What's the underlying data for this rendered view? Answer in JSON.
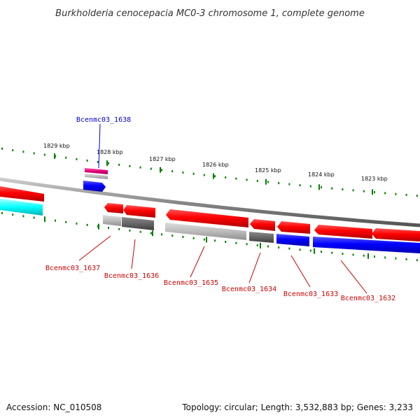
{
  "title": "Burkholderia cenocepacia MC0-3 chromosome 1, complete genome",
  "footer": {
    "accession": "Accession: NC_010508",
    "summary": "Topology: circular; Length: 3,532,883 bp; Genes: 3,233"
  },
  "colors": {
    "forward": "#ff0000",
    "reverse": "#0000ff",
    "rna": "#e2007a",
    "pseudo_light": "#bbbbbb",
    "pseudo_dark": "#666666",
    "cyan": "#00ffff",
    "tick": "#008000",
    "backbone": "#888888",
    "label_forward": "#cc0000",
    "label_reverse": "#0000cc"
  },
  "scale_labels": [
    "1829 kbp",
    "1828 kbp",
    "1827 kbp",
    "1826 kbp",
    "1825 kbp",
    "1824 kbp",
    "1823 kbp"
  ],
  "gene_labels": {
    "top": [
      "Bcenmc03_1638"
    ],
    "bottom": [
      "Bcenmc03_1637",
      "Bcenmc03_1636",
      "Bcenmc03_1635",
      "Bcenmc03_1634",
      "Bcenmc03_1633",
      "Bcenmc03_1632"
    ]
  }
}
